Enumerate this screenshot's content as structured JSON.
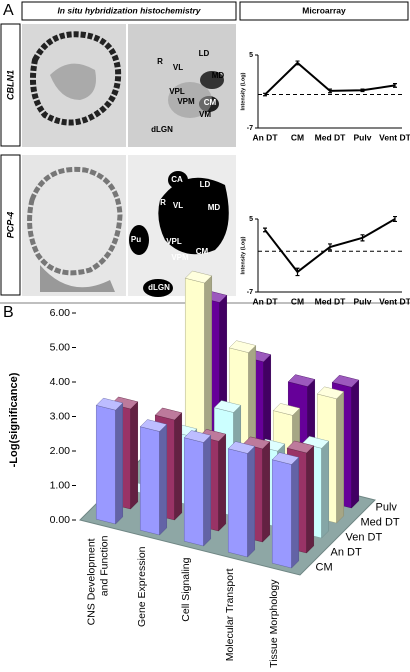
{
  "panel_labels": [
    "A",
    "B"
  ],
  "headers": [
    "In situ hybridization histochemistry",
    "Microarray"
  ],
  "row_labels": [
    "CBLN1",
    "PCP-4"
  ],
  "images": [
    {
      "labels": [
        "R",
        "VL",
        "LD",
        "MD",
        "VPL",
        "VPM",
        "CM",
        "VM",
        "dLGN"
      ]
    },
    {
      "labels": [
        "CA",
        "LD",
        "R",
        "VL",
        "MD",
        "Pu",
        "VPL",
        "VPM",
        "CM",
        "dLGN"
      ]
    }
  ],
  "chart_data": [
    {
      "type": "line",
      "categories": [
        "An DT",
        "CM",
        "Med DT",
        "Pulv",
        "Vent DT"
      ],
      "values": [
        -1.5,
        3.7,
        -0.9,
        -0.8,
        0
      ],
      "errors": [
        0.2,
        0.3,
        0.3,
        0.2,
        0.3
      ],
      "color": "#000000",
      "ylim": [
        -7,
        5
      ],
      "yticks": [
        -7,
        5
      ],
      "ylabel": "Intensity (Log)",
      "reference_line": -1.5
    },
    {
      "type": "line",
      "categories": [
        "An DT",
        "CM",
        "Med DT",
        "Pulv",
        "Vent DT"
      ],
      "values": [
        3.2,
        -3.7,
        0.4,
        1.9,
        5.0
      ],
      "errors": [
        0.3,
        0.6,
        0.5,
        0.5,
        0.4
      ],
      "color": "#000000",
      "ylim": [
        -7,
        5
      ],
      "yticks": [
        -7,
        5
      ],
      "ylabel": "Intensity (Log)",
      "reference_line": -0.3
    },
    {
      "type": "bar3d",
      "ylabel": "-Log(significance)",
      "categories": [
        "CNS Development and Function",
        "Gene Expression",
        "Cell Signaling",
        "Molecular Transport",
        "Tissue Morphology"
      ],
      "series": [
        {
          "name": "CM",
          "color": "#9999ff",
          "values": [
            3.3,
            3.0,
            3.0,
            3.0,
            3.0
          ]
        },
        {
          "name": "An DT",
          "color": "#993366",
          "values": [
            2.9,
            2.9,
            2.6,
            2.7,
            2.9
          ]
        },
        {
          "name": "Ven DT",
          "color": "#ccffff",
          "values": [
            0,
            2.0,
            3.0,
            2.2,
            2.6
          ]
        },
        {
          "name": "Med DT",
          "color": "#ffffcc",
          "values": [
            0,
            6.0,
            4.3,
            2.8,
            3.6
          ]
        },
        {
          "name": "Pulv",
          "color": "#660099",
          "values": [
            0,
            5.0,
            3.6,
            3.2,
            3.5
          ]
        }
      ],
      "ylim": [
        0,
        6
      ],
      "yticks": [
        {
          "value": 0,
          "label": "0.00"
        },
        {
          "value": 1,
          "label": "1.00"
        },
        {
          "value": 2,
          "label": "2.00"
        },
        {
          "value": 3,
          "label": "3.00"
        },
        {
          "value": 4,
          "label": "4.00"
        },
        {
          "value": 5,
          "label": "5.00"
        },
        {
          "value": 6,
          "label": "6.00"
        }
      ]
    }
  ]
}
